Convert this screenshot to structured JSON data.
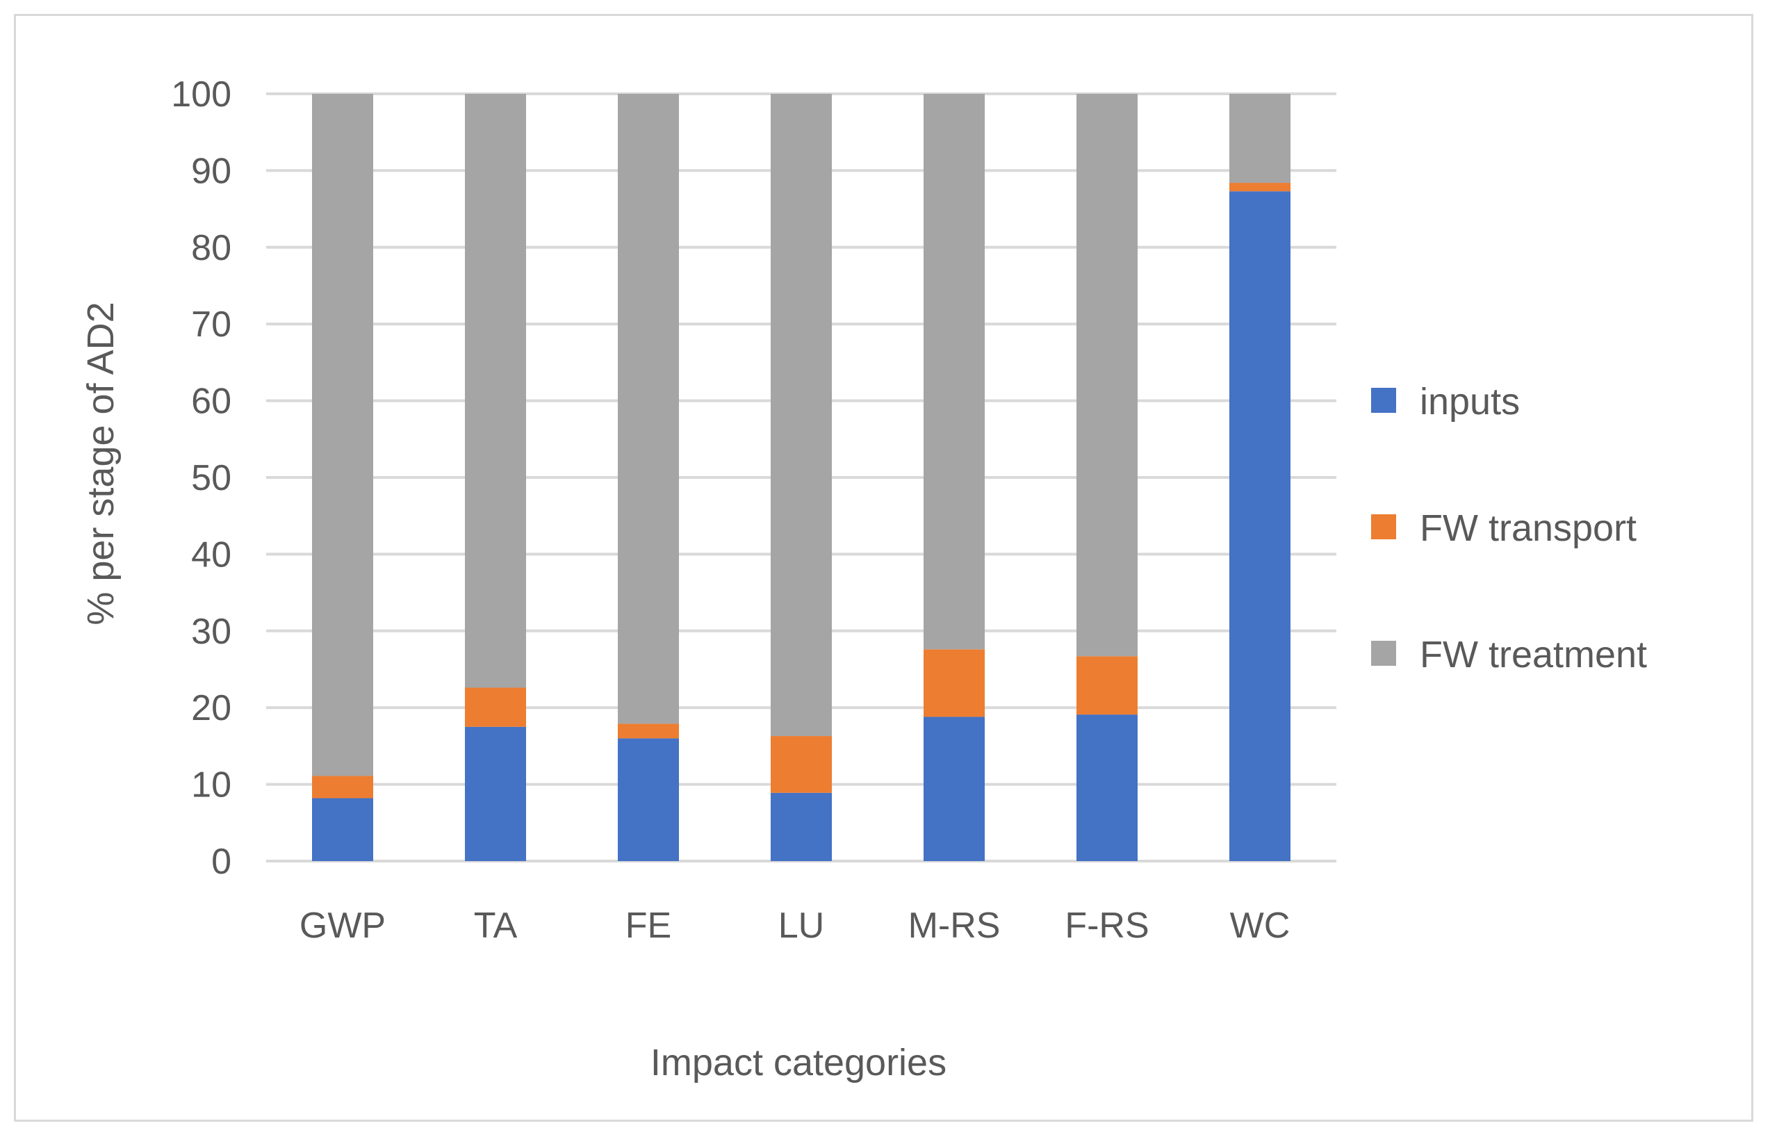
{
  "colors": {
    "inputs": "#4472c4",
    "fw_transport": "#ed7d31",
    "fw_treatment": "#a5a5a5",
    "gridline": "#d9d9d9",
    "text": "#595959"
  },
  "chart_data": {
    "type": "bar",
    "stacked": true,
    "title": "",
    "xlabel": "Impact categories",
    "ylabel": "% per stage of AD2",
    "ylim": [
      0,
      100
    ],
    "yticks": [
      0,
      10,
      20,
      30,
      40,
      50,
      60,
      70,
      80,
      90,
      100
    ],
    "grid": true,
    "legend_position": "right",
    "categories": [
      "GWP",
      "TA",
      "FE",
      "LU",
      "M-RS",
      "F-RS",
      "WC"
    ],
    "series": [
      {
        "name": "inputs",
        "color": "#4472c4",
        "values": [
          8.2,
          17.5,
          16.0,
          8.9,
          18.8,
          19.1,
          87.3
        ]
      },
      {
        "name": "FW transport",
        "color": "#ed7d31",
        "values": [
          2.9,
          5.1,
          1.9,
          7.4,
          8.8,
          7.6,
          1.1
        ]
      },
      {
        "name": "FW treatment",
        "color": "#a5a5a5",
        "values": [
          88.9,
          77.4,
          82.1,
          83.7,
          72.4,
          73.3,
          11.6
        ]
      }
    ]
  }
}
